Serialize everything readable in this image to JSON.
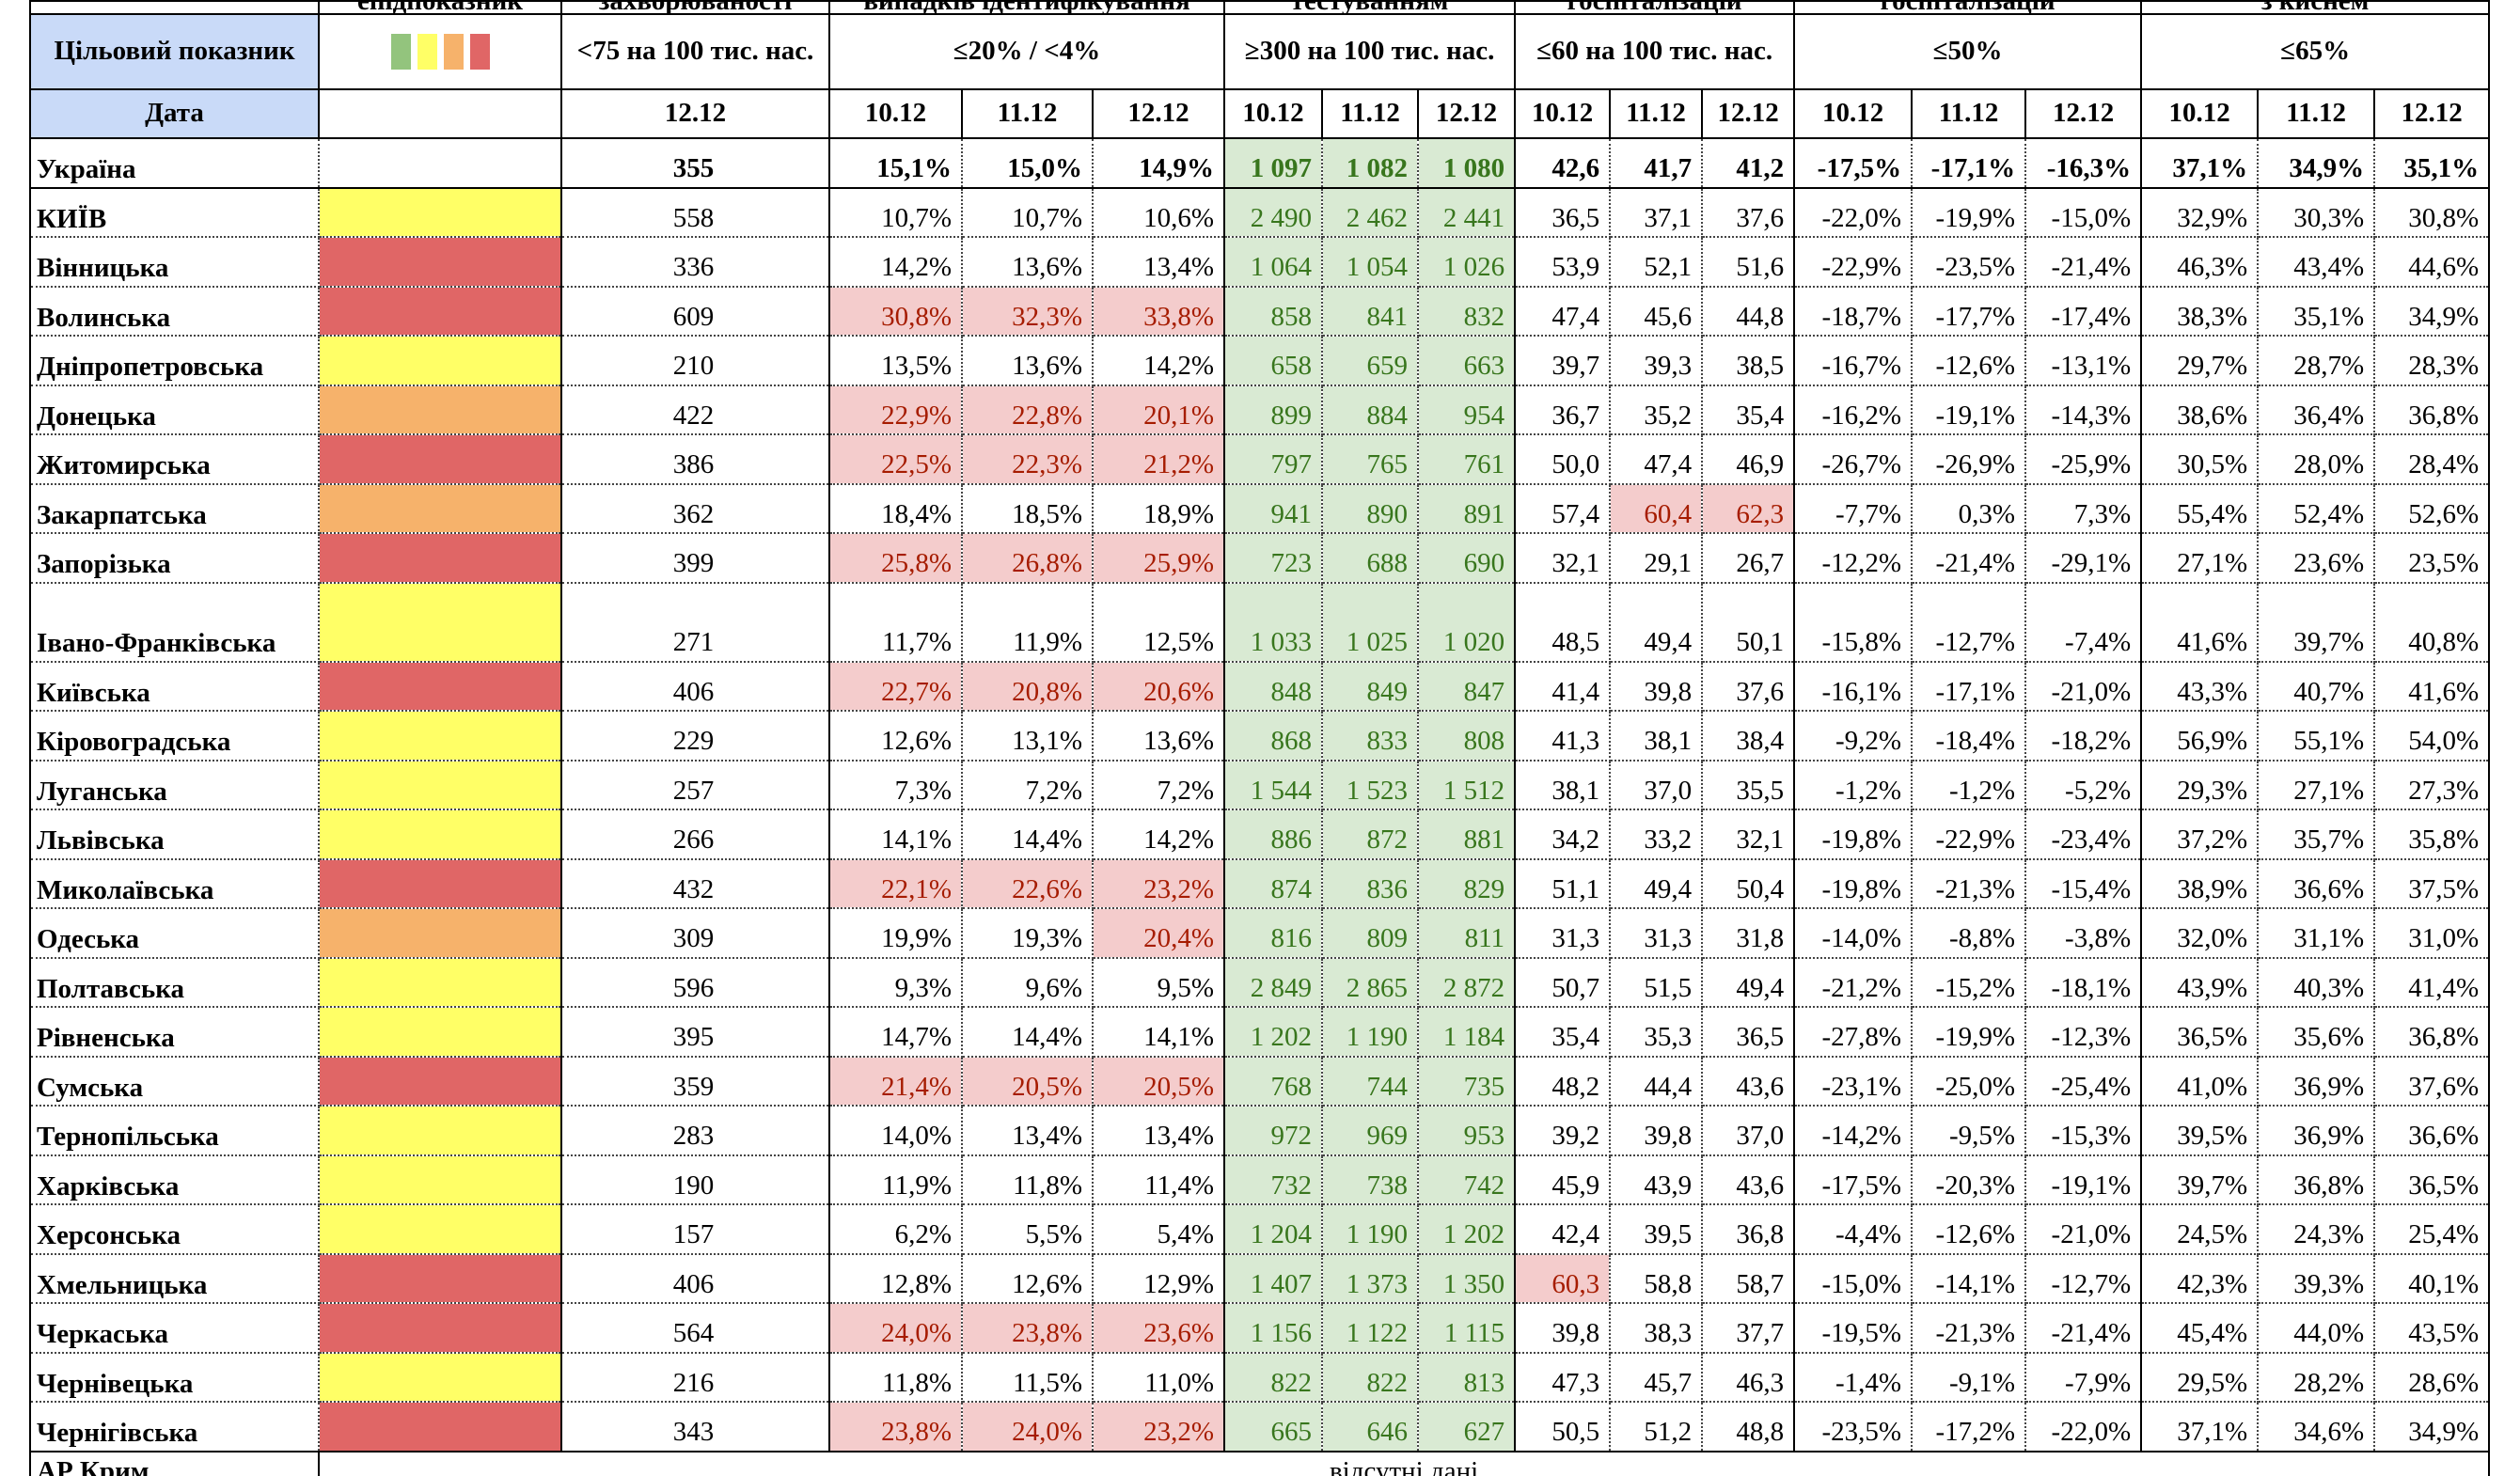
{
  "top_strip": [
    "епідпоказник",
    "захворюваності",
    "випадків ідентифікування",
    "тестуванням",
    "госпіталізацій",
    "госпіталізацій",
    "з киснем"
  ],
  "header": {
    "target_label": "Цільовий показник",
    "legend_colors": [
      "#93c47d",
      "#ffff66",
      "#f6b26b",
      "#e06666"
    ],
    "targets": [
      "<75 на 100 тис. нас.",
      "≤20% / <4%",
      "≥300 на 100 тис. нас.",
      "≤60 на 100 тис. нас.",
      "≤50%",
      "≤65%"
    ],
    "date_label": "Дата",
    "dates": [
      [
        "12.12"
      ],
      [
        "10.12",
        "11.12",
        "12.12"
      ],
      [
        "10.12",
        "11.12",
        "12.12"
      ],
      [
        "10.12",
        "11.12",
        "12.12"
      ],
      [
        "10.12",
        "11.12",
        "12.12"
      ],
      [
        "10.12",
        "11.12",
        "12.12"
      ]
    ]
  },
  "colors": {
    "header": "#c9daf8",
    "testing": "#d9ead3",
    "testing_text": "#38761d",
    "highlight": "#f4cccc",
    "highlight_text": "#a61c00"
  },
  "rows": [
    {
      "name": "Україна",
      "values": [
        "355",
        "15,1%",
        "15,0%",
        "14,9%",
        "1 097",
        "1 082",
        "1 080",
        "42,6",
        "41,7",
        "41,2",
        "-17,5%",
        "-17,1%",
        "-16,3%",
        "37,1%",
        "34,9%",
        "35,1%"
      ]
    },
    {
      "name": "КИЇВ",
      "status": "#ffff66",
      "values": [
        "558",
        "10,7%",
        "10,7%",
        "10,6%",
        "2 490",
        "2 462",
        "2 441",
        "36,5",
        "37,1",
        "37,6",
        "-22,0%",
        "-19,9%",
        "-15,0%",
        "32,9%",
        "30,3%",
        "30,8%"
      ]
    },
    {
      "name": "Вінницька",
      "status": "#e06666",
      "values": [
        "336",
        "14,2%",
        "13,6%",
        "13,4%",
        "1 064",
        "1 054",
        "1 026",
        "53,9",
        "52,1",
        "51,6",
        "-22,9%",
        "-23,5%",
        "-21,4%",
        "46,3%",
        "43,4%",
        "44,6%"
      ]
    },
    {
      "name": "Волинська",
      "status": "#e06666",
      "highlight": [
        1,
        2,
        3
      ],
      "values": [
        "609",
        "30,8%",
        "32,3%",
        "33,8%",
        "858",
        "841",
        "832",
        "47,4",
        "45,6",
        "44,8",
        "-18,7%",
        "-17,7%",
        "-17,4%",
        "38,3%",
        "35,1%",
        "34,9%"
      ]
    },
    {
      "name": "Дніпропетровська",
      "status": "#ffff66",
      "values": [
        "210",
        "13,5%",
        "13,6%",
        "14,2%",
        "658",
        "659",
        "663",
        "39,7",
        "39,3",
        "38,5",
        "-16,7%",
        "-12,6%",
        "-13,1%",
        "29,7%",
        "28,7%",
        "28,3%"
      ]
    },
    {
      "name": "Донецька",
      "status": "#f6b26b",
      "highlight": [
        1,
        2,
        3
      ],
      "values": [
        "422",
        "22,9%",
        "22,8%",
        "20,1%",
        "899",
        "884",
        "954",
        "36,7",
        "35,2",
        "35,4",
        "-16,2%",
        "-19,1%",
        "-14,3%",
        "38,6%",
        "36,4%",
        "36,8%"
      ]
    },
    {
      "name": "Житомирська",
      "status": "#e06666",
      "highlight": [
        1,
        2,
        3
      ],
      "values": [
        "386",
        "22,5%",
        "22,3%",
        "21,2%",
        "797",
        "765",
        "761",
        "50,0",
        "47,4",
        "46,9",
        "-26,7%",
        "-26,9%",
        "-25,9%",
        "30,5%",
        "28,0%",
        "28,4%"
      ]
    },
    {
      "name": "Закарпатська",
      "status": "#f6b26b",
      "highlight": [
        8,
        9
      ],
      "values": [
        "362",
        "18,4%",
        "18,5%",
        "18,9%",
        "941",
        "890",
        "891",
        "57,4",
        "60,4",
        "62,3",
        "-7,7%",
        "0,3%",
        "7,3%",
        "55,4%",
        "52,4%",
        "52,6%"
      ]
    },
    {
      "name": "Запорізька",
      "status": "#e06666",
      "highlight": [
        1,
        2,
        3
      ],
      "values": [
        "399",
        "25,8%",
        "26,8%",
        "25,9%",
        "723",
        "688",
        "690",
        "32,1",
        "29,1",
        "26,7",
        "-12,2%",
        "-21,4%",
        "-29,1%",
        "27,1%",
        "23,6%",
        "23,5%"
      ]
    },
    {
      "name": "Івано-Франківська",
      "status": "#ffff66",
      "values": [
        "271",
        "11,7%",
        "11,9%",
        "12,5%",
        "1 033",
        "1 025",
        "1 020",
        "48,5",
        "49,4",
        "50,1",
        "-15,8%",
        "-12,7%",
        "-7,4%",
        "41,6%",
        "39,7%",
        "40,8%"
      ]
    },
    {
      "name": "Київська",
      "status": "#e06666",
      "highlight": [
        1,
        2,
        3
      ],
      "values": [
        "406",
        "22,7%",
        "20,8%",
        "20,6%",
        "848",
        "849",
        "847",
        "41,4",
        "39,8",
        "37,6",
        "-16,1%",
        "-17,1%",
        "-21,0%",
        "43,3%",
        "40,7%",
        "41,6%"
      ]
    },
    {
      "name": "Кіровоградська",
      "status": "#ffff66",
      "values": [
        "229",
        "12,6%",
        "13,1%",
        "13,6%",
        "868",
        "833",
        "808",
        "41,3",
        "38,1",
        "38,4",
        "-9,2%",
        "-18,4%",
        "-18,2%",
        "56,9%",
        "55,1%",
        "54,0%"
      ]
    },
    {
      "name": "Луганська",
      "status": "#ffff66",
      "values": [
        "257",
        "7,3%",
        "7,2%",
        "7,2%",
        "1 544",
        "1 523",
        "1 512",
        "38,1",
        "37,0",
        "35,5",
        "-1,2%",
        "-1,2%",
        "-5,2%",
        "29,3%",
        "27,1%",
        "27,3%"
      ]
    },
    {
      "name": "Львівська",
      "status": "#ffff66",
      "values": [
        "266",
        "14,1%",
        "14,4%",
        "14,2%",
        "886",
        "872",
        "881",
        "34,2",
        "33,2",
        "32,1",
        "-19,8%",
        "-22,9%",
        "-23,4%",
        "37,2%",
        "35,7%",
        "35,8%"
      ]
    },
    {
      "name": "Миколаївська",
      "status": "#e06666",
      "highlight": [
        1,
        2,
        3
      ],
      "values": [
        "432",
        "22,1%",
        "22,6%",
        "23,2%",
        "874",
        "836",
        "829",
        "51,1",
        "49,4",
        "50,4",
        "-19,8%",
        "-21,3%",
        "-15,4%",
        "38,9%",
        "36,6%",
        "37,5%"
      ]
    },
    {
      "name": "Одеська",
      "status": "#f6b26b",
      "highlight": [
        3
      ],
      "values": [
        "309",
        "19,9%",
        "19,3%",
        "20,4%",
        "816",
        "809",
        "811",
        "31,3",
        "31,3",
        "31,8",
        "-14,0%",
        "-8,8%",
        "-3,8%",
        "32,0%",
        "31,1%",
        "31,0%"
      ]
    },
    {
      "name": "Полтавська",
      "status": "#ffff66",
      "values": [
        "596",
        "9,3%",
        "9,6%",
        "9,5%",
        "2 849",
        "2 865",
        "2 872",
        "50,7",
        "51,5",
        "49,4",
        "-21,2%",
        "-15,2%",
        "-18,1%",
        "43,9%",
        "40,3%",
        "41,4%"
      ]
    },
    {
      "name": "Рівненська",
      "status": "#ffff66",
      "values": [
        "395",
        "14,7%",
        "14,4%",
        "14,1%",
        "1 202",
        "1 190",
        "1 184",
        "35,4",
        "35,3",
        "36,5",
        "-27,8%",
        "-19,9%",
        "-12,3%",
        "36,5%",
        "35,6%",
        "36,8%"
      ]
    },
    {
      "name": "Сумська",
      "status": "#e06666",
      "highlight": [
        1,
        2,
        3
      ],
      "values": [
        "359",
        "21,4%",
        "20,5%",
        "20,5%",
        "768",
        "744",
        "735",
        "48,2",
        "44,4",
        "43,6",
        "-23,1%",
        "-25,0%",
        "-25,4%",
        "41,0%",
        "36,9%",
        "37,6%"
      ]
    },
    {
      "name": "Тернопільська",
      "status": "#ffff66",
      "values": [
        "283",
        "14,0%",
        "13,4%",
        "13,4%",
        "972",
        "969",
        "953",
        "39,2",
        "39,8",
        "37,0",
        "-14,2%",
        "-9,5%",
        "-15,3%",
        "39,5%",
        "36,9%",
        "36,6%"
      ]
    },
    {
      "name": "Харківська",
      "status": "#ffff66",
      "values": [
        "190",
        "11,9%",
        "11,8%",
        "11,4%",
        "732",
        "738",
        "742",
        "45,9",
        "43,9",
        "43,6",
        "-17,5%",
        "-20,3%",
        "-19,1%",
        "39,7%",
        "36,8%",
        "36,5%"
      ]
    },
    {
      "name": "Херсонська",
      "status": "#ffff66",
      "values": [
        "157",
        "6,2%",
        "5,5%",
        "5,4%",
        "1 204",
        "1 190",
        "1 202",
        "42,4",
        "39,5",
        "36,8",
        "-4,4%",
        "-12,6%",
        "-21,0%",
        "24,5%",
        "24,3%",
        "25,4%"
      ]
    },
    {
      "name": "Хмельницька",
      "status": "#e06666",
      "highlight": [
        7
      ],
      "values": [
        "406",
        "12,8%",
        "12,6%",
        "12,9%",
        "1 407",
        "1 373",
        "1 350",
        "60,3",
        "58,8",
        "58,7",
        "-15,0%",
        "-14,1%",
        "-12,7%",
        "42,3%",
        "39,3%",
        "40,1%"
      ]
    },
    {
      "name": "Черкаська",
      "status": "#e06666",
      "highlight": [
        1,
        2,
        3
      ],
      "values": [
        "564",
        "24,0%",
        "23,8%",
        "23,6%",
        "1 156",
        "1 122",
        "1 115",
        "39,8",
        "38,3",
        "37,7",
        "-19,5%",
        "-21,3%",
        "-21,4%",
        "45,4%",
        "44,0%",
        "43,5%"
      ]
    },
    {
      "name": "Чернівецька",
      "status": "#ffff66",
      "values": [
        "216",
        "11,8%",
        "11,5%",
        "11,0%",
        "822",
        "822",
        "813",
        "47,3",
        "45,7",
        "46,3",
        "-1,4%",
        "-9,1%",
        "-7,9%",
        "29,5%",
        "28,2%",
        "28,6%"
      ]
    },
    {
      "name": "Чернігівська",
      "status": "#e06666",
      "highlight": [
        1,
        2,
        3
      ],
      "values": [
        "343",
        "23,8%",
        "24,0%",
        "23,2%",
        "665",
        "646",
        "627",
        "50,5",
        "51,2",
        "48,8",
        "-23,5%",
        "-17,2%",
        "-22,0%",
        "37,1%",
        "34,6%",
        "34,9%"
      ]
    }
  ],
  "footer": {
    "name": "АР Крим",
    "note": "відсутні дані"
  }
}
